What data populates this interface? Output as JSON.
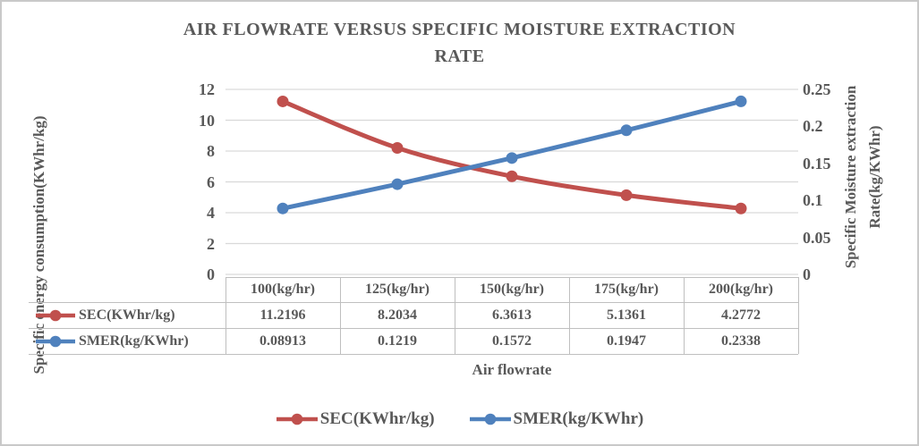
{
  "title": {
    "text": "AIR FLOWRATE VERSUS SPECIFIC MOISTURE EXTRACTION RATE",
    "lines": [
      "AIR FLOWRATE VERSUS SPECIFIC MOISTURE EXTRACTION",
      "RATE"
    ]
  },
  "left_axis": {
    "title": "Specific energy consumption(KWhr/kg)",
    "ticks": [
      "12",
      "10",
      "8",
      "6",
      "4",
      "2",
      "0"
    ],
    "min": 0,
    "max": 12
  },
  "right_axis": {
    "title_lines": [
      "Specific Moisture extraction",
      "Rate(kg/KWhr)"
    ],
    "ticks": [
      "0.25",
      "0.2",
      "0.15",
      "0.1",
      "0.05",
      "0"
    ],
    "min": 0,
    "max": 0.25
  },
  "x_axis": {
    "title": "Air flowrate"
  },
  "colors": {
    "sec": "#c0504d",
    "smer": "#4f81bd",
    "gridline": "#d9d9d9",
    "table_border": "#bfbfbf",
    "text": "#595959"
  },
  "chart_data": {
    "type": "line",
    "categories": [
      "100(kg/hr)",
      "125(kg/hr)",
      "150(kg/hr)",
      "175(kg/hr)",
      "200(kg/hr)"
    ],
    "series": [
      {
        "name": "SEC(KWhr/kg)",
        "axis": "left",
        "color": "#c0504d",
        "values": [
          11.2196,
          8.2034,
          6.3613,
          5.1361,
          4.2772
        ]
      },
      {
        "name": "SMER(kg/KWhr)",
        "axis": "right",
        "color": "#4f81bd",
        "values": [
          0.08913,
          0.1219,
          0.1572,
          0.1947,
          0.2338
        ]
      }
    ],
    "title": "AIR FLOWRATE VERSUS SPECIFIC MOISTURE EXTRACTION RATE",
    "xlabel": "Air flowrate",
    "ylabel_left": "Specific energy consumption(KWhr/kg)",
    "ylabel_right": "Specific Moisture extraction Rate(kg/KWhr)",
    "ylim_left": [
      0,
      12
    ],
    "ylim_right": [
      0,
      0.25
    ],
    "grid": true,
    "smooth_lines": true,
    "legend_position": "bottom",
    "data_table": true
  },
  "table": {
    "headers": [
      "100(kg/hr)",
      "125(kg/hr)",
      "150(kg/hr)",
      "175(kg/hr)",
      "200(kg/hr)"
    ],
    "rows": [
      {
        "name": "SEC(KWhr/kg)",
        "values": [
          "11.2196",
          "8.2034",
          "6.3613",
          "5.1361",
          "4.2772"
        ]
      },
      {
        "name": "SMER(kg/KWhr)",
        "values": [
          "0.08913",
          "0.1219",
          "0.1572",
          "0.1947",
          "0.2338"
        ]
      }
    ]
  },
  "legend": {
    "items": [
      {
        "label": "SEC(KWhr/kg)",
        "color": "#c0504d"
      },
      {
        "label": "SMER(kg/KWhr)",
        "color": "#4f81bd"
      }
    ]
  }
}
